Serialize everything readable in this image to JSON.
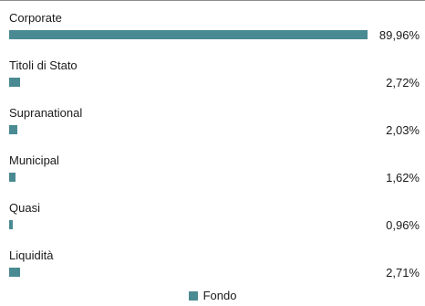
{
  "chart_data": {
    "type": "bar",
    "orientation": "horizontal",
    "categories": [
      "Corporate",
      "Titoli di Stato",
      "Supranational",
      "Municipal",
      "Quasi",
      "Liquidità"
    ],
    "value_labels": [
      "89,96%",
      "2,72%",
      "2,03%",
      "1,62%",
      "0,96%",
      "2,71%"
    ],
    "series": [
      {
        "name": "Fondo",
        "color": "#4a8a92",
        "values": [
          89.96,
          2.72,
          2.03,
          1.62,
          0.96,
          2.71
        ]
      }
    ],
    "xlim": [
      0,
      100
    ],
    "grid": false,
    "legend": "bottom-center"
  }
}
